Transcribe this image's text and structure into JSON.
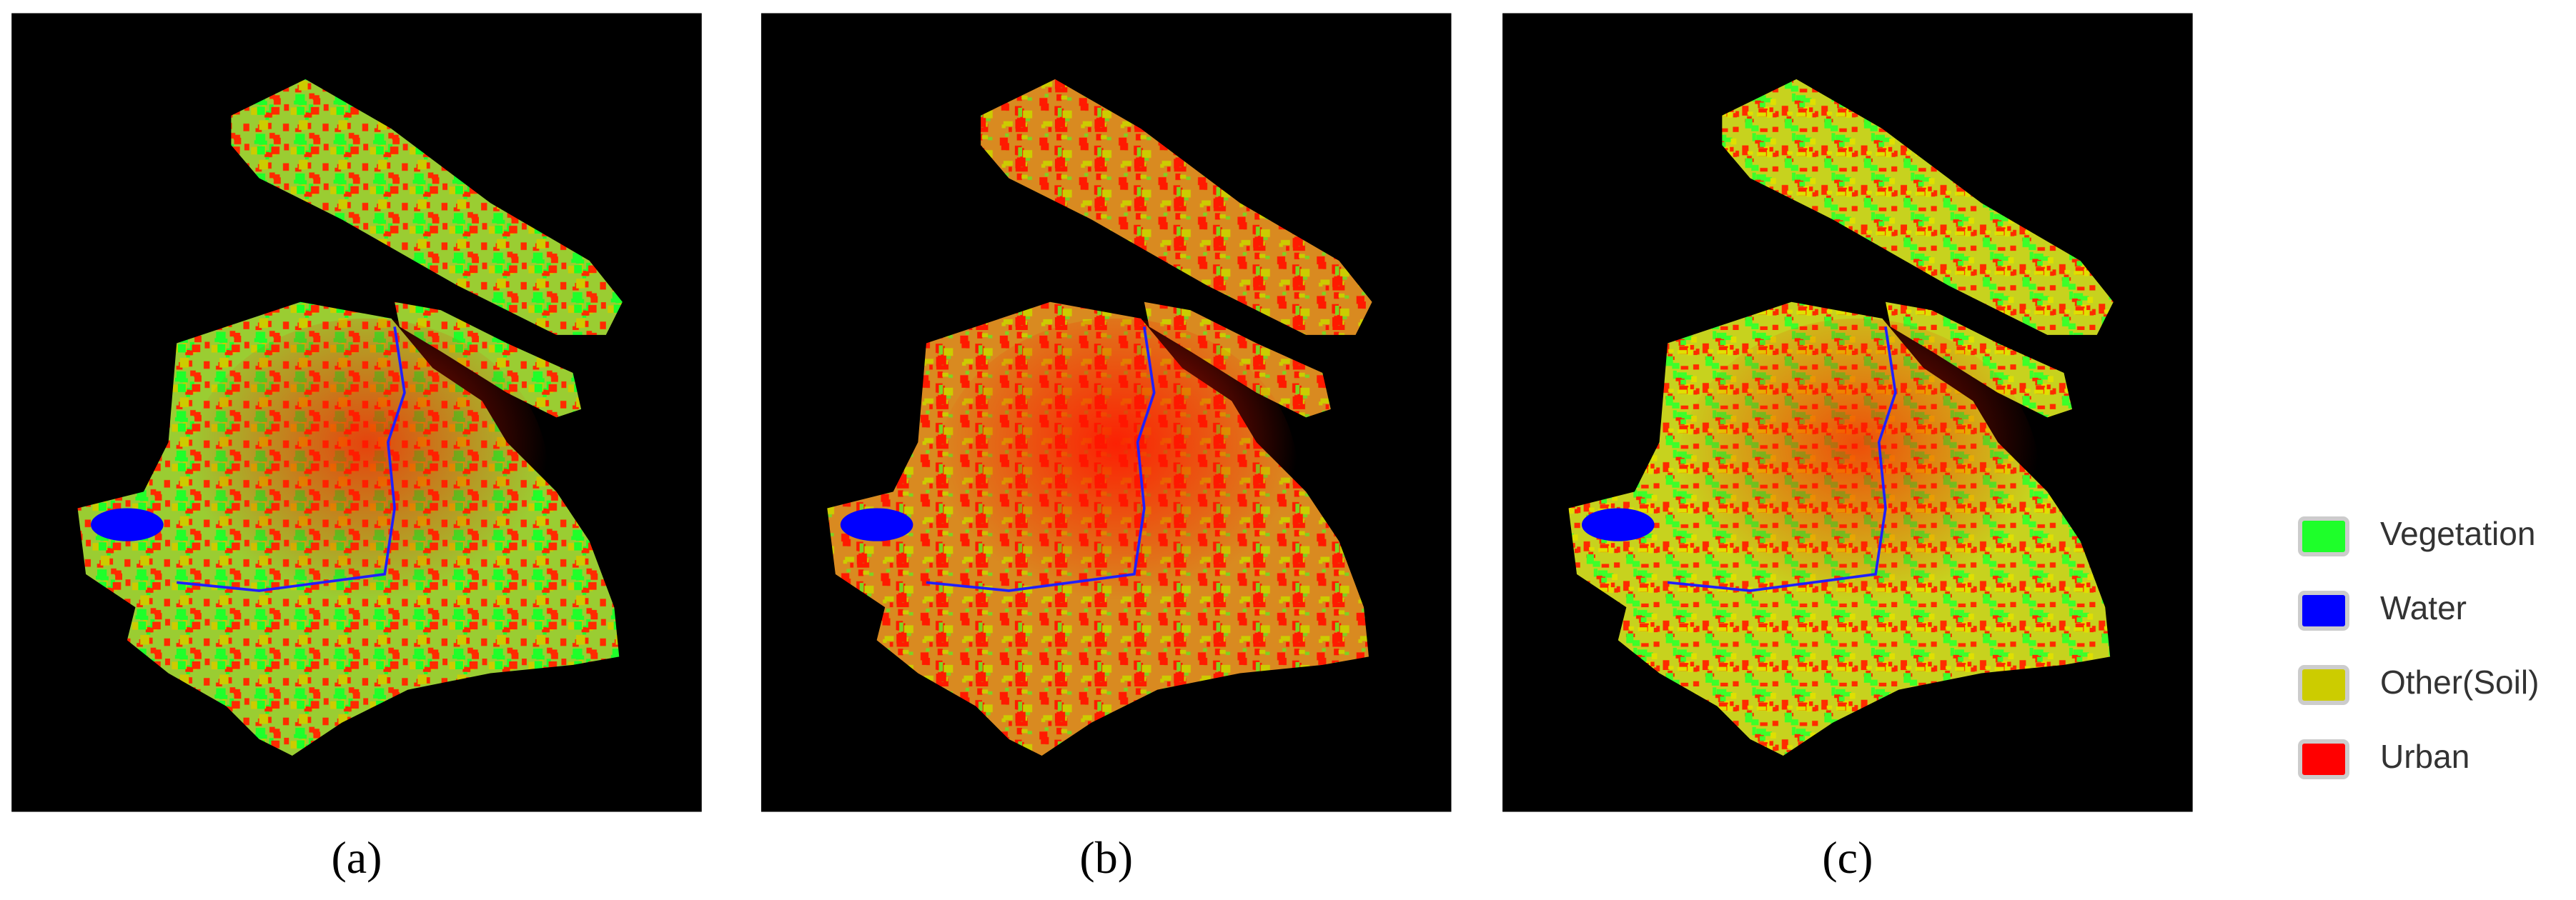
{
  "panels": [
    {
      "label": "(a)"
    },
    {
      "label": "(b)"
    },
    {
      "label": "(c)"
    }
  ],
  "legend": [
    {
      "name": "Vegetation",
      "color": "#1eff2a"
    },
    {
      "name": "Water",
      "color": "#0000ff"
    },
    {
      "name": "Other(Soil)",
      "color": "#cccc00"
    },
    {
      "name": "Urban",
      "color": "#ff0000"
    }
  ]
}
